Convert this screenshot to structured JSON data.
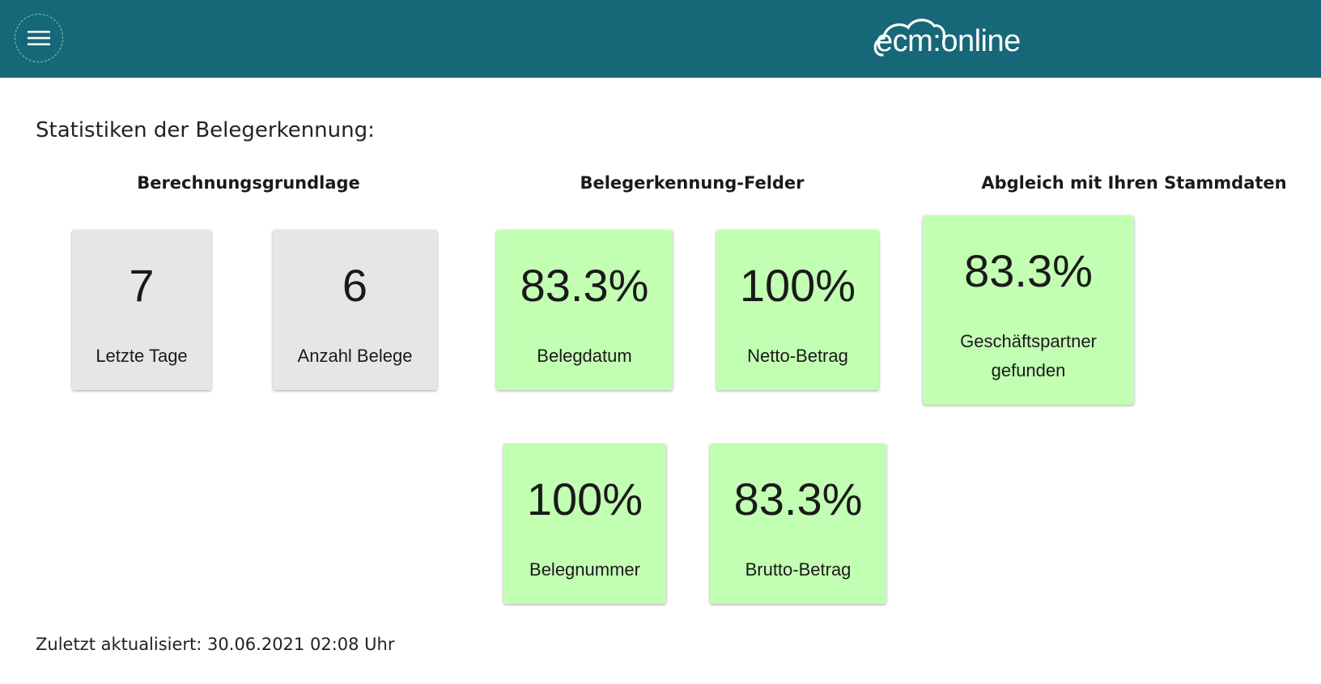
{
  "header": {
    "menu_icon": "hamburger-menu-icon",
    "logo_text": "ecm:online",
    "bg_color": "#166878"
  },
  "page_title": "Statistiken der Belegerkennung:",
  "sections": {
    "basis": "Berechnungsgrundlage",
    "fields": "Belegerkennung-Felder",
    "masterdata": "Abgleich mit Ihren Stammdaten"
  },
  "cards": {
    "letzte_tage": {
      "value": "7",
      "label": "Letzte Tage"
    },
    "anzahl_belege": {
      "value": "6",
      "label": "Anzahl Belege"
    },
    "belegdatum": {
      "value": "83.3%",
      "label": "Belegdatum"
    },
    "netto_betrag": {
      "value": "100%",
      "label": "Netto-Betrag"
    },
    "geschaeftspartner": {
      "value": "83.3%",
      "label_line1": "Geschäftspartner",
      "label_line2": "gefunden"
    },
    "belegnummer": {
      "value": "100%",
      "label": "Belegnummer"
    },
    "brutto_betrag": {
      "value": "83.3%",
      "label": "Brutto-Betrag"
    }
  },
  "colors": {
    "neutral_card": "#e6e6e6",
    "success_card": "#c3ffb3"
  },
  "footer": {
    "updated": "Zuletzt aktualisiert: 30.06.2021 02:08 Uhr"
  }
}
